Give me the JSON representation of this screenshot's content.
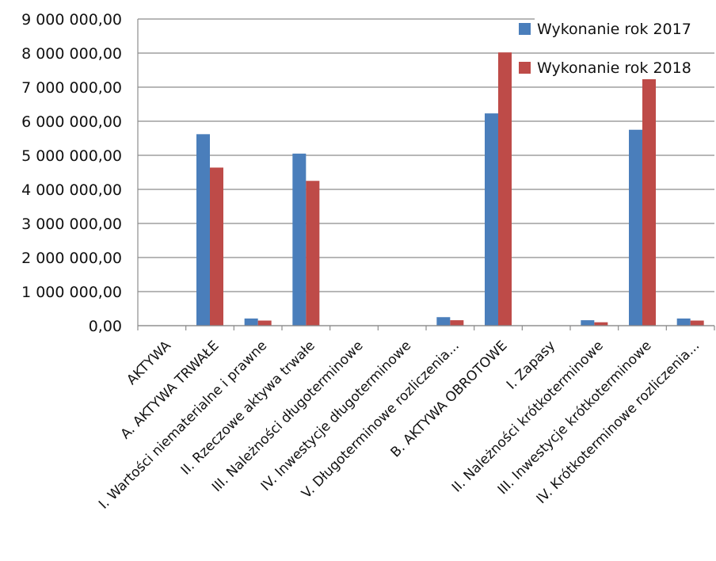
{
  "chart_data": {
    "type": "bar",
    "title": "",
    "xlabel": "",
    "ylabel": "",
    "ylim": [
      0,
      9000000
    ],
    "yticks": [
      0,
      1000000,
      2000000,
      3000000,
      4000000,
      5000000,
      6000000,
      7000000,
      8000000,
      9000000
    ],
    "ytick_labels": [
      "0,00",
      "1 000 000,00",
      "2 000 000,00",
      "3 000 000,00",
      "4 000 000,00",
      "5 000 000,00",
      "6 000 000,00",
      "7 000 000,00",
      "8 000 000,00",
      "9 000 000,00"
    ],
    "grid": true,
    "legend_position": "top-right",
    "categories": [
      "AKTYWA",
      "A. AKTYWA TRWAŁE",
      "I. Wartości niematerialne i prawne",
      "II. Rzeczowe aktywa trwałe",
      "III. Należności długoterminowe",
      "IV. Inwestycje długoterminowe",
      "V. Długoterminowe rozliczenia...",
      "B. AKTYWA OBROTOWE",
      "I. Zapasy",
      "II. Należności krótkoterminowe",
      "III. Inwestycje krótkoterminowe",
      "IV. Krótkoterminowe rozliczenia..."
    ],
    "series": [
      {
        "name": "Wykonanie rok 2017",
        "color": "#4a7ebb",
        "values": [
          0,
          5620000,
          210000,
          5050000,
          0,
          10000,
          250000,
          6230000,
          0,
          160000,
          5750000,
          210000
        ]
      },
      {
        "name": "Wykonanie rok 2018",
        "color": "#be4b48",
        "values": [
          0,
          4640000,
          150000,
          4250000,
          0,
          0,
          160000,
          8020000,
          0,
          100000,
          7680000,
          150000
        ]
      }
    ]
  }
}
